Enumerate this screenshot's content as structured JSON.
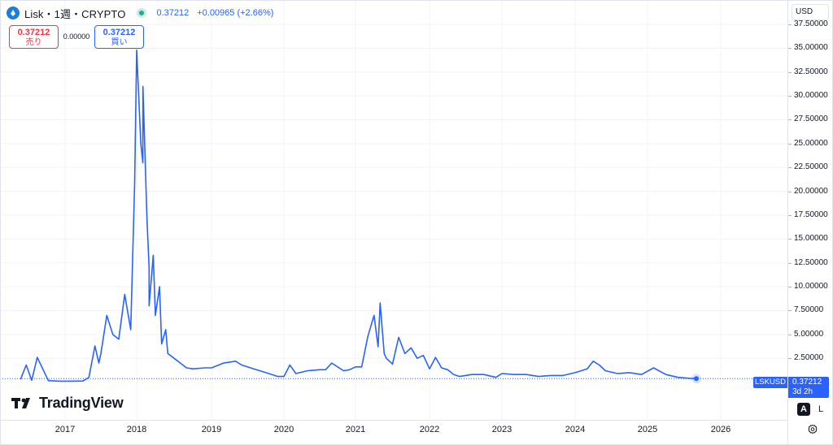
{
  "header": {
    "title": "Lisk・1週・CRYPTO",
    "price": "0.37212",
    "change": "+0.00965 (+2.66%)"
  },
  "trade": {
    "sell_price": "0.37212",
    "sell_label": "売り",
    "spread": "0.00000",
    "buy_price": "0.37212",
    "buy_label": "買い"
  },
  "scale": {
    "currency": "USD",
    "auto_label": "A",
    "log_label": "L"
  },
  "last_price_tag": {
    "ticker": "LSKUSD",
    "price": "0.37212",
    "countdown": "3d 2h"
  },
  "watermark": {
    "brand": "TradingView"
  },
  "colors": {
    "line": "#2962ff",
    "accent": "#2962ff",
    "sell": "#f23645",
    "status": "#22ab94"
  },
  "icons": {
    "symbol_logo": "lisk-logo-icon",
    "status": "market-status-icon",
    "settings": "gear-icon"
  },
  "chart_data": {
    "type": "line",
    "series": [
      {
        "name": "LSKUSD",
        "x": [
          "2016-05",
          "2016-06",
          "2016-07",
          "2016-08",
          "2016-10",
          "2016-12",
          "2017-02",
          "2017-04",
          "2017-05",
          "2017-06",
          "2017-06b",
          "2017-07",
          "2017-08",
          "2017-09",
          "2017-10",
          "2017-11",
          "2017-12",
          "2017-12b",
          "2018-01",
          "2018-01b",
          "2018-01c",
          "2018-02",
          "2018-02b",
          "2018-02c",
          "2018-03",
          "2018-03b",
          "2018-04",
          "2018-04b",
          "2018-05",
          "2018-05b",
          "2018-06",
          "2018-07",
          "2018-08",
          "2018-09",
          "2018-10",
          "2018-12",
          "2019-01",
          "2019-03",
          "2019-05",
          "2019-06",
          "2019-08",
          "2019-10",
          "2019-12",
          "2020-01",
          "2020-02",
          "2020-03",
          "2020-05",
          "2020-07",
          "2020-08",
          "2020-09",
          "2020-11",
          "2020-12",
          "2021-01",
          "2021-02",
          "2021-03",
          "2021-04",
          "2021-04b",
          "2021-05",
          "2021-05b",
          "2021-06",
          "2021-07",
          "2021-08",
          "2021-09",
          "2021-10",
          "2021-11",
          "2021-12",
          "2022-01",
          "2022-02",
          "2022-03",
          "2022-04",
          "2022-05",
          "2022-06",
          "2022-08",
          "2022-10",
          "2022-12",
          "2023-01",
          "2023-03",
          "2023-05",
          "2023-07",
          "2023-09",
          "2023-11",
          "2024-01",
          "2024-03",
          "2024-04",
          "2024-05",
          "2024-06",
          "2024-08",
          "2024-10",
          "2024-12",
          "2025-02",
          "2025-04",
          "2025-06",
          "2025-08",
          "2025-09"
        ],
        "values": [
          0.3,
          1.8,
          0.2,
          2.6,
          0.15,
          0.1,
          0.1,
          0.12,
          0.5,
          3.8,
          2.0,
          3.0,
          7.0,
          5.0,
          4.5,
          9.2,
          5.5,
          20.8,
          34.8,
          25.0,
          23.0,
          31.0,
          17.0,
          12.0,
          8.0,
          13.3,
          7.0,
          10.0,
          4.0,
          5.5,
          3.0,
          2.5,
          2.0,
          1.5,
          1.4,
          1.5,
          1.5,
          2.0,
          2.2,
          1.8,
          1.4,
          1.0,
          0.6,
          0.6,
          1.8,
          0.9,
          1.2,
          1.3,
          1.3,
          2.0,
          1.2,
          1.3,
          1.6,
          1.6,
          4.8,
          7.0,
          3.7,
          8.3,
          3.0,
          2.5,
          1.9,
          4.7,
          3.0,
          3.6,
          2.5,
          2.8,
          1.4,
          2.6,
          1.5,
          1.3,
          0.8,
          0.6,
          0.8,
          0.8,
          0.5,
          0.9,
          0.8,
          0.8,
          0.6,
          0.7,
          0.7,
          1.0,
          1.4,
          2.2,
          1.8,
          1.2,
          0.9,
          1.0,
          0.8,
          1.5,
          0.8,
          0.5,
          0.4,
          0.37212
        ]
      }
    ],
    "y_ticks": [
      "2.50000",
      "5.00000",
      "7.50000",
      "10.00000",
      "12.50000",
      "15.00000",
      "17.50000",
      "20.00000",
      "22.50000",
      "25.00000",
      "27.50000",
      "30.00000",
      "32.50000",
      "35.00000",
      "37.50000"
    ],
    "x_ticks": [
      "2017",
      "2018",
      "2019",
      "2020",
      "2021",
      "2022",
      "2023",
      "2024",
      "2025",
      "2026"
    ],
    "ylim": [
      0,
      38
    ],
    "grid": true,
    "legend": "none"
  }
}
